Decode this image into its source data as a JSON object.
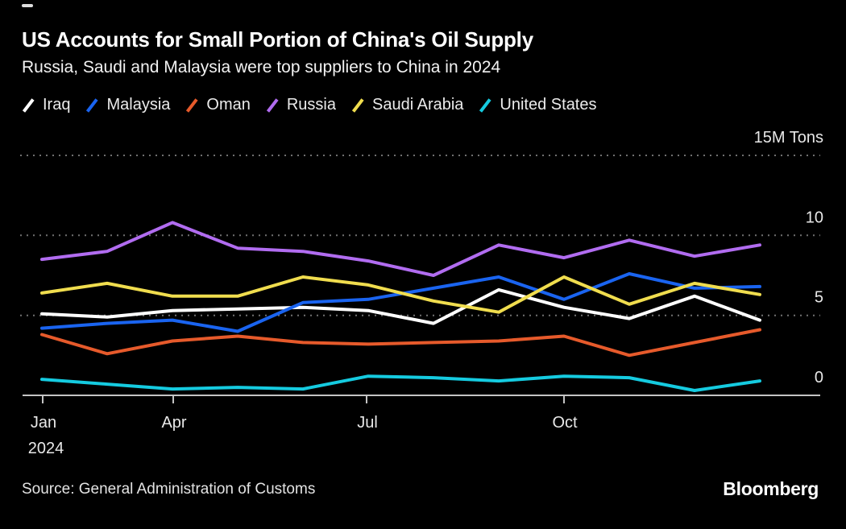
{
  "header": {
    "title": "US Accounts for Small Portion of China's Oil Supply",
    "subtitle": "Russia, Saudi and Malaysia were top suppliers to China in 2024"
  },
  "legend": [
    {
      "label": "Iraq",
      "color": "#ffffff"
    },
    {
      "label": "Malaysia",
      "color": "#1a64f0"
    },
    {
      "label": "Oman",
      "color": "#e65a2b"
    },
    {
      "label": "Russia",
      "color": "#b16cf0"
    },
    {
      "label": "Saudi Arabia",
      "color": "#f0dd4e"
    },
    {
      "label": "United States",
      "color": "#15cbe0"
    }
  ],
  "chart_data": {
    "type": "line",
    "x": [
      "Jan",
      "Feb",
      "Mar",
      "Apr",
      "May",
      "Jun",
      "Jul",
      "Aug",
      "Sep",
      "Oct",
      "Nov",
      "Dec"
    ],
    "series": [
      {
        "name": "Iraq",
        "color": "#ffffff",
        "values": [
          5.1,
          4.9,
          5.3,
          5.4,
          5.5,
          5.3,
          4.5,
          6.6,
          5.5,
          4.8,
          6.2,
          4.7
        ]
      },
      {
        "name": "Malaysia",
        "color": "#1a64f0",
        "values": [
          4.2,
          4.5,
          4.7,
          4.0,
          5.8,
          6.0,
          6.7,
          7.4,
          6.0,
          7.6,
          6.7,
          6.8
        ]
      },
      {
        "name": "Oman",
        "color": "#e65a2b",
        "values": [
          3.8,
          2.6,
          3.4,
          3.7,
          3.3,
          3.2,
          3.3,
          3.4,
          3.7,
          2.5,
          3.3,
          4.1
        ]
      },
      {
        "name": "Russia",
        "color": "#b16cf0",
        "values": [
          8.5,
          9.0,
          10.8,
          9.2,
          9.0,
          8.4,
          7.5,
          9.4,
          8.6,
          9.7,
          8.7,
          9.4
        ]
      },
      {
        "name": "Saudi Arabia",
        "color": "#f0dd4e",
        "values": [
          6.4,
          7.0,
          6.2,
          6.2,
          7.4,
          6.9,
          5.9,
          5.2,
          7.4,
          5.7,
          7.0,
          6.3
        ]
      },
      {
        "name": "United States",
        "color": "#15cbe0",
        "values": [
          1.0,
          0.7,
          0.4,
          0.5,
          0.4,
          1.2,
          1.1,
          0.9,
          1.2,
          1.1,
          0.3,
          0.9
        ]
      }
    ],
    "title": "US Accounts for Small Portion of China's Oil Supply",
    "subtitle": "Russia, Saudi and Malaysia were top suppliers to China in 2024",
    "unit_label": "15M Tons",
    "ylabel": "Million tons",
    "ylim": [
      0,
      15
    ],
    "y_ticks": [
      15,
      10,
      5,
      0
    ],
    "x_tick_labels": [
      "Jan",
      "Apr",
      "Jul",
      "Oct"
    ],
    "x_tick_year": "2024",
    "grid": "horizontal-dotted",
    "legend_position": "top"
  },
  "footer": {
    "source": "Source: General Administration of Customs",
    "brand": "Bloomberg"
  }
}
